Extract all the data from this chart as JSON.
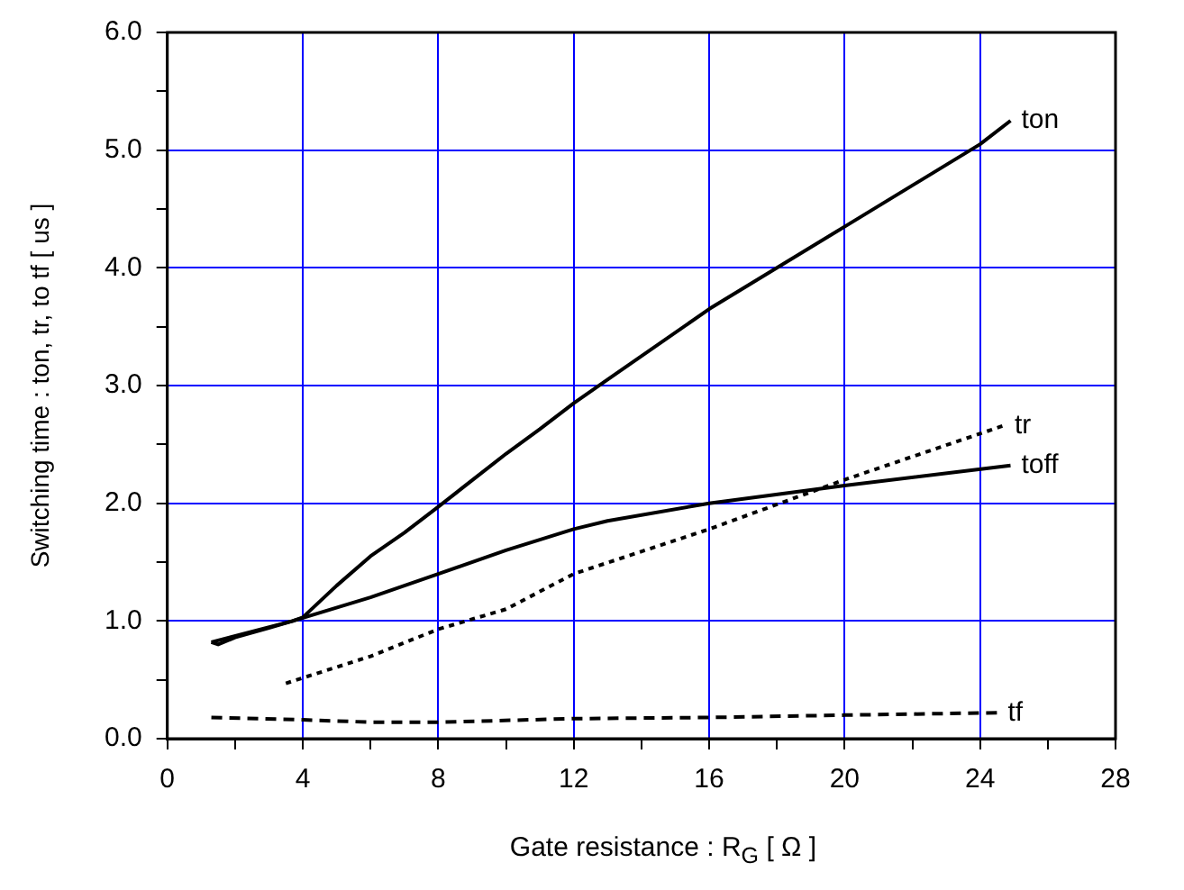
{
  "chart_data": {
    "type": "line",
    "xlabel": "Gate resistance  :  R$_{G}$  [ Ω ]",
    "ylabel": "Switching time : ton, tr, to tf  [ us ]",
    "xlim": [
      0,
      28
    ],
    "xticks": [
      0,
      {
        "value": 2,
        "label": null
      },
      4,
      {
        "value": 6,
        "label": null
      },
      8,
      {
        "value": 10,
        "label": null
      },
      12,
      {
        "value": 14,
        "label": null
      },
      16,
      {
        "value": 18,
        "label": null
      },
      20,
      {
        "value": 22,
        "label": null
      },
      24,
      {
        "value": 26,
        "label": null
      },
      28
    ],
    "ylim": [
      0,
      6
    ],
    "yticks": [
      {
        "value": 0,
        "label": "0.0"
      },
      {
        "value": 0.5,
        "label": null
      },
      {
        "value": 1,
        "label": "1.0"
      },
      {
        "value": 1.5,
        "label": null
      },
      {
        "value": 2,
        "label": "2.0"
      },
      {
        "value": 2.5,
        "label": null
      },
      {
        "value": 3,
        "label": "3.0"
      },
      {
        "value": 3.5,
        "label": null
      },
      {
        "value": 4,
        "label": "4.0"
      },
      {
        "value": 4.5,
        "label": null
      },
      {
        "value": 5,
        "label": "5.0"
      },
      {
        "value": 5.5,
        "label": null
      },
      {
        "value": 6,
        "label": "6.0"
      }
    ],
    "grid": true,
    "legend": false,
    "marker": "none",
    "series": [
      {
        "name": "ton",
        "color": "#000000",
        "line_style": "solid",
        "x": [
          1.3,
          1.5,
          2,
          3,
          3.7,
          4,
          5,
          6,
          7,
          8,
          10,
          11,
          12,
          13,
          16,
          20,
          24,
          24.9
        ],
        "values": [
          0.82,
          0.8,
          0.86,
          0.94,
          1.0,
          1.03,
          1.3,
          1.55,
          1.75,
          1.97,
          2.42,
          2.63,
          2.85,
          3.05,
          3.65,
          4.35,
          5.05,
          5.25
        ]
      },
      {
        "name": "tr",
        "color": "#000000",
        "line_style": "dotted",
        "x": [
          3.5,
          6,
          8,
          10,
          12,
          16,
          20,
          24.7
        ],
        "values": [
          0.47,
          0.7,
          0.93,
          1.1,
          1.4,
          1.78,
          2.2,
          2.66
        ]
      },
      {
        "name": "toff",
        "color": "#000000",
        "line_style": "solid",
        "x": [
          1.3,
          3.7,
          6,
          8,
          10,
          12,
          13,
          16,
          20,
          24.9
        ],
        "values": [
          0.82,
          1.0,
          1.2,
          1.4,
          1.6,
          1.78,
          1.85,
          2.0,
          2.15,
          2.32
        ]
      },
      {
        "name": "tf",
        "color": "#000000",
        "line_style": "dashed",
        "x": [
          1.3,
          4,
          6,
          8,
          12,
          16,
          20,
          24.5
        ],
        "values": [
          0.18,
          0.16,
          0.14,
          0.14,
          0.17,
          0.18,
          0.2,
          0.22
        ]
      }
    ]
  }
}
